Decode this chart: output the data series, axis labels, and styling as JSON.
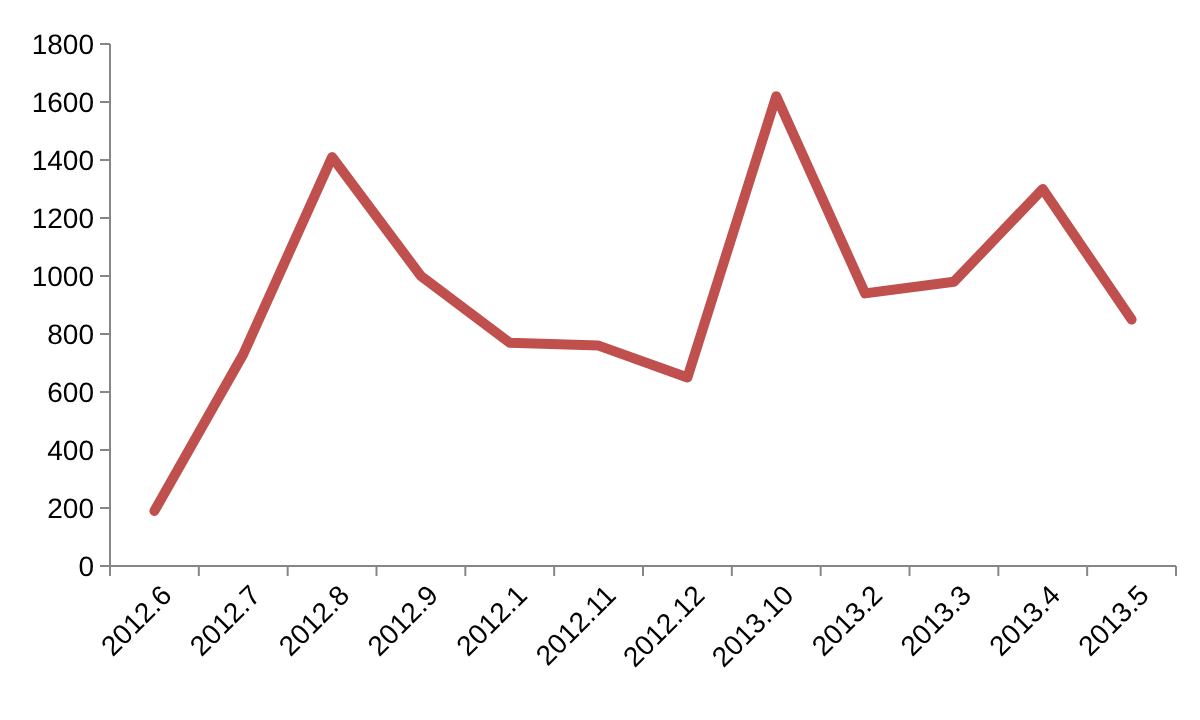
{
  "chart_data": {
    "type": "line",
    "categories": [
      "2012.6",
      "2012.7",
      "2012.8",
      "2012.9",
      "2012.1",
      "2012.11",
      "2012.12",
      "2013.10",
      "2013.2",
      "2013.3",
      "2013.4",
      "2013.5"
    ],
    "series": [
      {
        "color": "#c0504d",
        "values": [
          190,
          730,
          1410,
          1000,
          770,
          760,
          650,
          1620,
          940,
          980,
          1300,
          850
        ]
      }
    ],
    "ylim": [
      0,
      1800
    ],
    "yticks": [
      0,
      200,
      400,
      600,
      800,
      1000,
      1200,
      1400,
      1600,
      1800
    ],
    "grid": false,
    "marker": "none",
    "line_style": "solid"
  }
}
